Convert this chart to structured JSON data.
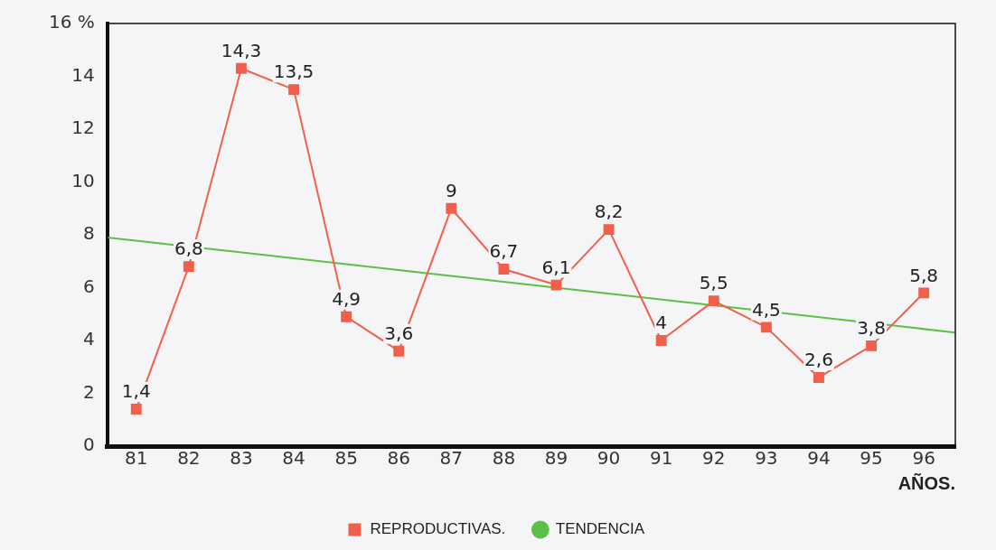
{
  "chart_data": {
    "type": "line",
    "xlabel": "AÑOS.",
    "x": [
      81,
      82,
      83,
      84,
      85,
      86,
      87,
      88,
      89,
      90,
      91,
      92,
      93,
      94,
      95,
      96
    ],
    "xlim": [
      80.45,
      96.6
    ],
    "xticks": [
      81,
      82,
      83,
      84,
      85,
      86,
      87,
      88,
      89,
      90,
      91,
      92,
      93,
      94,
      95,
      96
    ],
    "ylim": [
      0,
      16
    ],
    "yticks": [
      0,
      2,
      4,
      6,
      8,
      10,
      12,
      14,
      {
        "value": 16,
        "label": "16 %"
      }
    ],
    "grid": false,
    "legend": "bottom",
    "series": [
      {
        "name": "REPRODUCTIVAS.",
        "color": "#f0604a",
        "marker": "square",
        "values": [
          1.4,
          6.8,
          14.3,
          13.5,
          4.9,
          3.6,
          9,
          6.7,
          6.1,
          8.2,
          4,
          5.5,
          4.5,
          2.6,
          3.8,
          5.8
        ],
        "value_labels": [
          "1,4",
          "6,8",
          "14,3",
          "13,5",
          "4,9",
          "3,6",
          "9",
          "6,7",
          "6,1",
          "8,2",
          "4",
          "5,5",
          "4,5",
          "2,6",
          "3,8",
          "5,8"
        ]
      },
      {
        "name": "TENDENCIA",
        "color": "#5cc044",
        "marker": "none",
        "x": [
          80.45,
          96.6
        ],
        "values": [
          7.9,
          4.3
        ]
      }
    ]
  }
}
